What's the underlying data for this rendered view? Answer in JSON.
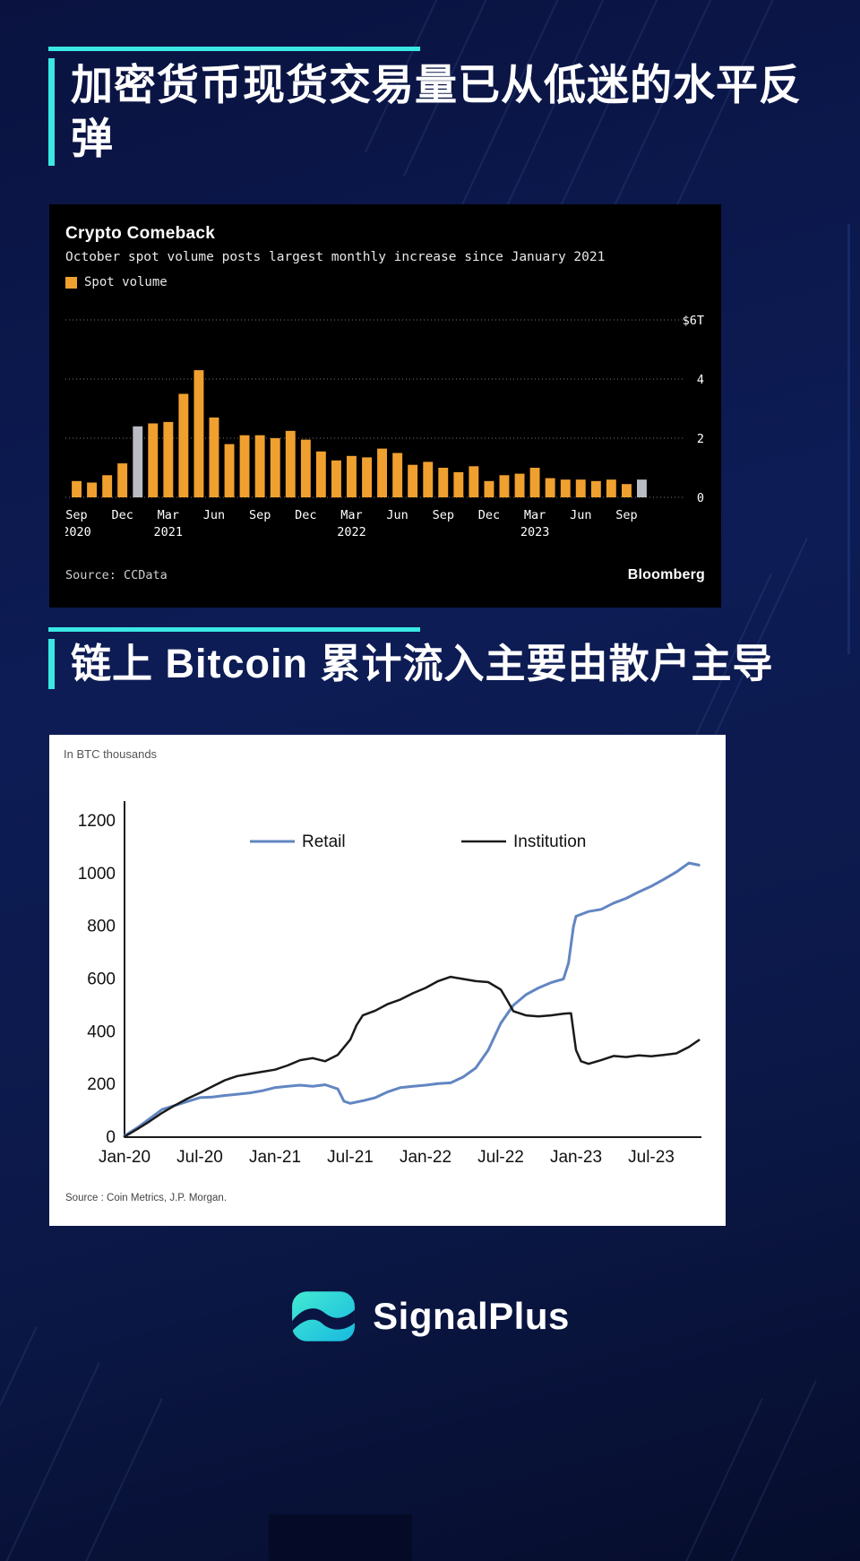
{
  "page": {
    "accent_color": "#3ae8e4",
    "bg_color": "#0c1a4e"
  },
  "sections": [
    {
      "title": "加密货币现货交易量已从低迷的水平反弹"
    },
    {
      "title": "链上 Bitcoin 累计流入主要由散户主导"
    }
  ],
  "footer": {
    "brand": "SignalPlus"
  },
  "chart_data": [
    {
      "type": "bar",
      "title": "Crypto Comeback",
      "subtitle": "October spot volume posts largest monthly increase since January 2021",
      "legend_label": "Spot volume",
      "source": "Source: CCData",
      "brand": "Bloomberg",
      "unit": "$T",
      "ylim": [
        0,
        6
      ],
      "yticks": [
        0,
        2,
        4,
        6
      ],
      "ytick_labels": [
        "0",
        "2",
        "4",
        "$6T"
      ],
      "bar_color": "#efa02f",
      "highlight_color": "#b9bdc3",
      "highlight_indices": [
        4,
        37
      ],
      "categories": [
        "Sep-20",
        "Oct-20",
        "Nov-20",
        "Dec-20",
        "Jan-21",
        "Feb-21",
        "Mar-21",
        "Apr-21",
        "May-21",
        "Jun-21",
        "Jul-21",
        "Aug-21",
        "Sep-21",
        "Oct-21",
        "Nov-21",
        "Dec-21",
        "Jan-22",
        "Feb-22",
        "Mar-22",
        "Apr-22",
        "May-22",
        "Jun-22",
        "Jul-22",
        "Aug-22",
        "Sep-22",
        "Oct-22",
        "Nov-22",
        "Dec-22",
        "Jan-23",
        "Feb-23",
        "Mar-23",
        "Apr-23",
        "May-23",
        "Jun-23",
        "Jul-23",
        "Aug-23",
        "Sep-23",
        "Oct-23"
      ],
      "values": [
        0.55,
        0.5,
        0.75,
        1.15,
        2.4,
        2.5,
        2.55,
        3.5,
        4.3,
        2.7,
        1.8,
        2.1,
        2.1,
        2.0,
        2.25,
        1.95,
        1.55,
        1.25,
        1.4,
        1.35,
        1.65,
        1.5,
        1.1,
        1.2,
        1.0,
        0.85,
        1.05,
        0.55,
        0.75,
        0.8,
        1.0,
        0.65,
        0.6,
        0.6,
        0.55,
        0.6,
        0.45,
        0.6
      ],
      "xticks": [
        {
          "i": 0,
          "m": "Sep",
          "y": "2020"
        },
        {
          "i": 3,
          "m": "Dec"
        },
        {
          "i": 6,
          "m": "Mar",
          "y": "2021"
        },
        {
          "i": 9,
          "m": "Jun"
        },
        {
          "i": 12,
          "m": "Sep"
        },
        {
          "i": 15,
          "m": "Dec"
        },
        {
          "i": 18,
          "m": "Mar",
          "y": "2022"
        },
        {
          "i": 21,
          "m": "Jun"
        },
        {
          "i": 24,
          "m": "Sep"
        },
        {
          "i": 27,
          "m": "Dec"
        },
        {
          "i": 30,
          "m": "Mar",
          "y": "2023"
        },
        {
          "i": 33,
          "m": "Jun"
        },
        {
          "i": 36,
          "m": "Sep"
        }
      ]
    },
    {
      "type": "line",
      "units_label": "In BTC thousands",
      "source": "Source : Coin Metrics, J.P. Morgan.",
      "ylim": [
        0,
        1200
      ],
      "yticks": [
        0,
        200,
        400,
        600,
        800,
        1000,
        1200
      ],
      "xlim": [
        0,
        46
      ],
      "xticks": [
        0,
        6,
        12,
        18,
        24,
        30,
        36,
        42
      ],
      "xtick_labels": [
        "Jan-20",
        "Jul-20",
        "Jan-21",
        "Jul-21",
        "Jan-22",
        "Jul-22",
        "Jan-23",
        "Jul-23"
      ],
      "series": [
        {
          "name": "Retail",
          "color": "#6286c2",
          "width": 3,
          "points": [
            [
              0,
              5
            ],
            [
              1,
              35
            ],
            [
              2,
              70
            ],
            [
              3,
              105
            ],
            [
              4,
              120
            ],
            [
              5,
              135
            ],
            [
              6,
              150
            ],
            [
              7,
              152
            ],
            [
              8,
              158
            ],
            [
              9,
              163
            ],
            [
              10,
              168
            ],
            [
              11,
              176
            ],
            [
              12,
              188
            ],
            [
              13,
              193
            ],
            [
              14,
              197
            ],
            [
              15,
              193
            ],
            [
              16,
              199
            ],
            [
              17,
              183
            ],
            [
              17.5,
              136
            ],
            [
              18,
              128
            ],
            [
              19,
              138
            ],
            [
              20,
              150
            ],
            [
              21,
              172
            ],
            [
              22,
              188
            ],
            [
              23,
              193
            ],
            [
              24,
              197
            ],
            [
              25,
              203
            ],
            [
              26,
              206
            ],
            [
              27,
              228
            ],
            [
              28,
              262
            ],
            [
              29,
              330
            ],
            [
              30,
              432
            ],
            [
              31,
              500
            ],
            [
              32,
              540
            ],
            [
              33,
              566
            ],
            [
              34,
              586
            ],
            [
              35,
              600
            ],
            [
              35.4,
              660
            ],
            [
              35.8,
              800
            ],
            [
              36,
              838
            ],
            [
              37,
              856
            ],
            [
              38,
              864
            ],
            [
              39,
              888
            ],
            [
              40,
              906
            ],
            [
              41,
              930
            ],
            [
              42,
              952
            ],
            [
              43,
              978
            ],
            [
              44,
              1006
            ],
            [
              45,
              1040
            ],
            [
              45.8,
              1032
            ]
          ]
        },
        {
          "name": "Institution",
          "color": "#1a1a1a",
          "width": 2.5,
          "points": [
            [
              0,
              2
            ],
            [
              1,
              30
            ],
            [
              2,
              60
            ],
            [
              3,
              92
            ],
            [
              4,
              120
            ],
            [
              5,
              146
            ],
            [
              6,
              168
            ],
            [
              7,
              192
            ],
            [
              8,
              216
            ],
            [
              9,
              232
            ],
            [
              10,
              240
            ],
            [
              11,
              248
            ],
            [
              12,
              256
            ],
            [
              13,
              272
            ],
            [
              14,
              292
            ],
            [
              15,
              300
            ],
            [
              16,
              288
            ],
            [
              17,
              312
            ],
            [
              18,
              370
            ],
            [
              18.5,
              425
            ],
            [
              19,
              462
            ],
            [
              20,
              480
            ],
            [
              21,
              505
            ],
            [
              22,
              522
            ],
            [
              23,
              546
            ],
            [
              24,
              566
            ],
            [
              25,
              592
            ],
            [
              26,
              608
            ],
            [
              27,
              600
            ],
            [
              28,
              592
            ],
            [
              29,
              588
            ],
            [
              30,
              560
            ],
            [
              30.5,
              520
            ],
            [
              31,
              478
            ],
            [
              32,
              462
            ],
            [
              33,
              458
            ],
            [
              34,
              462
            ],
            [
              35,
              468
            ],
            [
              35.6,
              470
            ],
            [
              36,
              330
            ],
            [
              36.4,
              288
            ],
            [
              37,
              278
            ],
            [
              38,
              292
            ],
            [
              39,
              308
            ],
            [
              40,
              304
            ],
            [
              41,
              310
            ],
            [
              42,
              307
            ],
            [
              43,
              312
            ],
            [
              44,
              318
            ],
            [
              45,
              342
            ],
            [
              45.8,
              368
            ]
          ]
        }
      ]
    }
  ]
}
